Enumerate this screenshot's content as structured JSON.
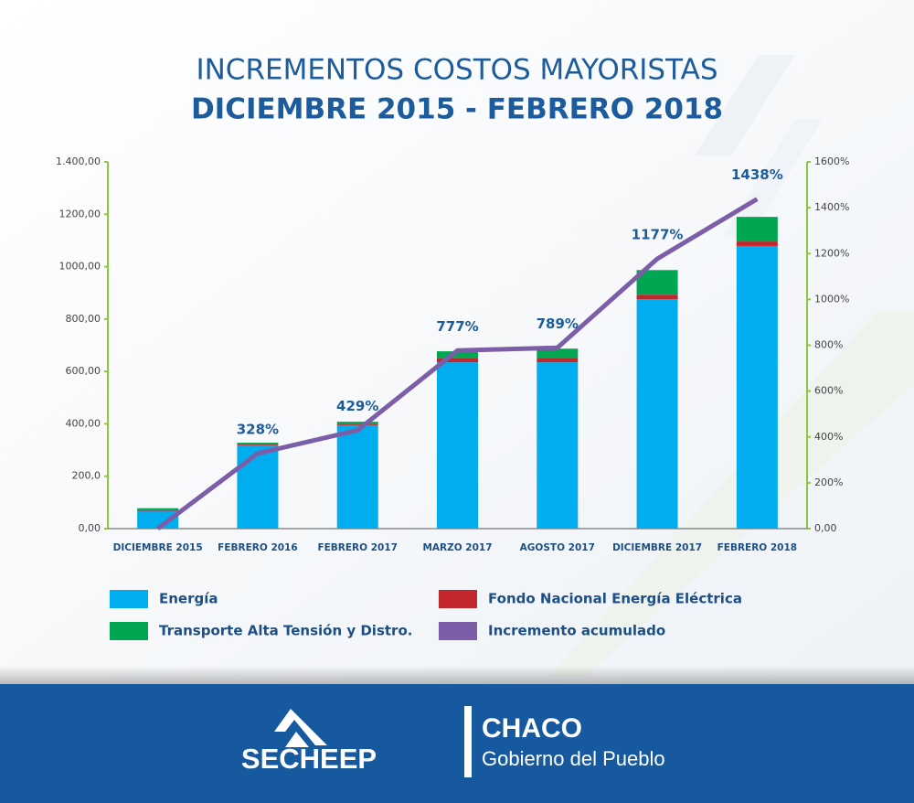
{
  "chart_data": {
    "type": "bar",
    "stacked": true,
    "title": "INCREMENTOS COSTOS MAYORISTAS",
    "subtitle": "DICIEMBRE 2015 - FEBRERO 2018",
    "categories": [
      "DICIEMBRE 2015",
      "FEBRERO 2016",
      "FEBRERO 2017",
      "MARZO 2017",
      "AGOSTO 2017",
      "DICIEMBRE 2017",
      "FEBRERO 2018"
    ],
    "series": [
      {
        "name": "Energía",
        "color": "#00aeef",
        "values": [
          68,
          318,
          395,
          635,
          635,
          876,
          1079
        ]
      },
      {
        "name": "Fondo Nacional Energía Eléctrica",
        "color": "#c1272d",
        "values": [
          2,
          3,
          3,
          17,
          17,
          17,
          17
        ]
      },
      {
        "name": "Transporte Alta Tensión y Distro.",
        "color": "#00a651",
        "values": [
          8,
          7,
          10,
          25,
          35,
          94,
          94
        ]
      },
      {
        "name": "Incremento acumulado",
        "color": "#7b5ea7",
        "type": "line",
        "axis": "y2",
        "values": [
          0,
          328,
          429,
          777,
          789,
          1177,
          1438
        ],
        "value_labels": [
          null,
          "328%",
          "429%",
          "777%",
          "789%",
          "1177%",
          "1438%"
        ]
      }
    ],
    "ylim": [
      0,
      1400
    ],
    "yticks": [
      {
        "value": 0,
        "label": "0,00"
      },
      {
        "value": 200,
        "label": "200,0"
      },
      {
        "value": 400,
        "label": "400,00"
      },
      {
        "value": 600,
        "label": "600,00"
      },
      {
        "value": 800,
        "label": "800,00"
      },
      {
        "value": 1000,
        "label": "1000,00"
      },
      {
        "value": 1200,
        "label": "1200,00"
      },
      {
        "value": 1400,
        "label": "1.400,00"
      }
    ],
    "y2lim": [
      0,
      1600
    ],
    "y2ticks": [
      {
        "value": 0,
        "label": "0,00"
      },
      {
        "value": 200,
        "label": "200%"
      },
      {
        "value": 400,
        "label": "400%"
      },
      {
        "value": 600,
        "label": "600%"
      },
      {
        "value": 800,
        "label": "800%"
      },
      {
        "value": 1000,
        "label": "1000%"
      },
      {
        "value": 1200,
        "label": "1200%"
      },
      {
        "value": 1400,
        "label": "1400%"
      },
      {
        "value": 1600,
        "label": "1600%"
      }
    ],
    "grid": false
  },
  "footer": {
    "brand": "SECHEEP",
    "province": "CHACO",
    "slogan": "Gobierno del Pueblo"
  }
}
